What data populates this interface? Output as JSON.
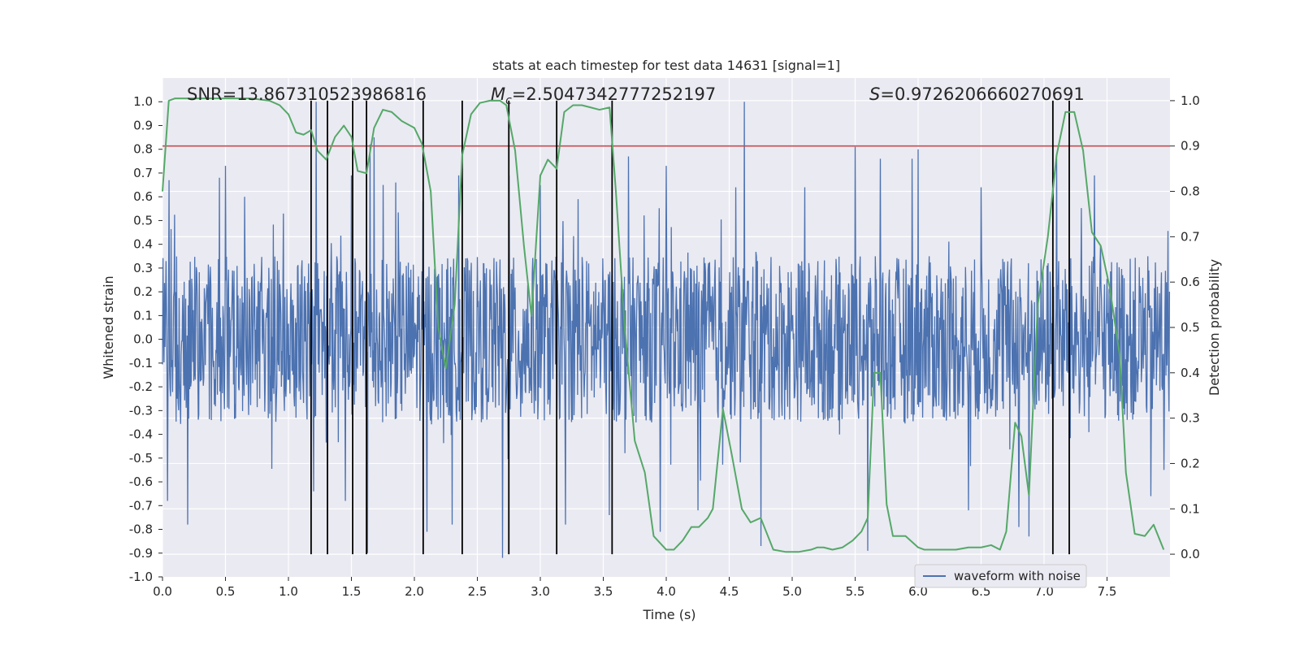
{
  "chart_data": {
    "type": "line",
    "title": "stats at each timestep for test data 14631 [signal=1]",
    "xlabel": "Time (s)",
    "ylabel": "Whitened strain",
    "ylabel_right": "Detection probability",
    "xlim": [
      0.0,
      8.0
    ],
    "ylim": [
      -1.0,
      1.1
    ],
    "ylim_right": [
      -0.05,
      1.05
    ],
    "x_ticks": [
      "0.0",
      "0.5",
      "1.0",
      "1.5",
      "2.0",
      "2.5",
      "3.0",
      "3.5",
      "4.0",
      "4.5",
      "5.0",
      "5.5",
      "6.0",
      "6.5",
      "7.0",
      "7.5"
    ],
    "y_ticks": [
      "-1.0",
      "-0.9",
      "-0.8",
      "-0.7",
      "-0.6",
      "-0.5",
      "-0.4",
      "-0.3",
      "-0.2",
      "-0.1",
      "0.0",
      "0.1",
      "0.2",
      "0.3",
      "0.4",
      "0.5",
      "0.6",
      "0.7",
      "0.8",
      "0.9",
      "1.0"
    ],
    "y_ticks_right": [
      "0.0",
      "0.1",
      "0.2",
      "0.3",
      "0.4",
      "0.5",
      "0.6",
      "0.7",
      "0.8",
      "0.9",
      "1.0"
    ],
    "grid": true,
    "legend_position": "lower-right",
    "annotations": {
      "snr": "SNR=13.867310523986816",
      "mc_symbol": "M",
      "mc_subscript": "c",
      "mc_value": "=2.5047342777252197",
      "s_symbol": "S",
      "s_value": "=0.9726206660270691"
    },
    "colors": {
      "waveform": "#4c72b0",
      "probability": "#55a868",
      "threshold": "#c44e52",
      "event_lines": "#000000",
      "plot_background": "#eaeaf2",
      "grid": "#ffffff"
    },
    "series": [
      {
        "name": "waveform with noise",
        "axis": "left",
        "style": "dense noise trace",
        "sample_rate_hz": 250,
        "typical_range": [
          -0.35,
          0.35
        ],
        "peaks_positive": [
          [
            0.05,
            0.67
          ],
          [
            0.2,
            0.7
          ],
          [
            0.45,
            0.68
          ],
          [
            0.5,
            0.73
          ],
          [
            0.65,
            0.6
          ],
          [
            1.2,
            0.63
          ],
          [
            1.22,
            1.0
          ],
          [
            1.5,
            0.69
          ],
          [
            1.65,
            0.82
          ],
          [
            1.68,
            0.85
          ],
          [
            1.75,
            0.65
          ],
          [
            1.85,
            0.66
          ],
          [
            2.35,
            0.69
          ],
          [
            2.7,
            0.64
          ],
          [
            2.75,
            0.69
          ],
          [
            3.0,
            0.65
          ],
          [
            3.3,
            0.59
          ],
          [
            3.55,
            0.79
          ],
          [
            3.7,
            0.77
          ],
          [
            4.0,
            0.73
          ],
          [
            4.55,
            0.64
          ],
          [
            4.62,
            1.0
          ],
          [
            5.1,
            0.64
          ],
          [
            5.5,
            0.81
          ],
          [
            5.7,
            0.76
          ],
          [
            5.95,
            0.76
          ],
          [
            6.0,
            0.8
          ],
          [
            6.5,
            0.64
          ],
          [
            7.1,
            0.76
          ],
          [
            7.4,
            0.69
          ],
          [
            7.95,
            0.73
          ]
        ],
        "peaks_negative": [
          [
            0.04,
            -0.68
          ],
          [
            0.2,
            -0.78
          ],
          [
            1.2,
            -0.64
          ],
          [
            1.45,
            -0.68
          ],
          [
            1.63,
            -0.9
          ],
          [
            2.1,
            -0.81
          ],
          [
            2.3,
            -0.78
          ],
          [
            2.7,
            -0.92
          ],
          [
            3.2,
            -0.78
          ],
          [
            3.55,
            -0.74
          ],
          [
            3.95,
            -0.81
          ],
          [
            4.25,
            -0.72
          ],
          [
            4.75,
            -0.87
          ],
          [
            5.6,
            -0.89
          ],
          [
            6.4,
            -0.72
          ],
          [
            6.8,
            -0.79
          ],
          [
            6.88,
            -0.83
          ],
          [
            7.85,
            -0.66
          ],
          [
            7.95,
            -0.55
          ]
        ]
      },
      {
        "name": "",
        "axis": "right",
        "x": [
          0.0,
          0.05,
          0.1,
          0.2,
          0.3,
          0.5,
          0.7,
          0.85,
          0.93,
          1.0,
          1.06,
          1.12,
          1.18,
          1.23,
          1.3,
          1.37,
          1.44,
          1.5,
          1.55,
          1.62,
          1.68,
          1.75,
          1.82,
          1.9,
          2.0,
          2.06,
          2.13,
          2.19,
          2.25,
          2.32,
          2.38,
          2.45,
          2.52,
          2.6,
          2.68,
          2.73,
          2.8,
          2.87,
          2.93,
          3.0,
          3.06,
          3.13,
          3.19,
          3.26,
          3.33,
          3.4,
          3.47,
          3.55,
          3.6,
          3.67,
          3.75,
          3.83,
          3.9,
          4.0,
          4.06,
          4.13,
          4.2,
          4.26,
          4.33,
          4.37,
          4.45,
          4.52,
          4.6,
          4.67,
          4.75,
          4.85,
          4.95,
          5.05,
          5.15,
          5.2,
          5.25,
          5.32,
          5.4,
          5.48,
          5.55,
          5.6,
          5.65,
          5.7,
          5.75,
          5.8,
          5.9,
          6.0,
          6.05,
          6.15,
          6.3,
          6.4,
          6.5,
          6.58,
          6.65,
          6.7,
          6.77,
          6.82,
          6.88,
          6.95,
          7.03,
          7.1,
          7.17,
          7.24,
          7.31,
          7.38,
          7.45,
          7.52,
          7.6,
          7.65,
          7.72,
          7.8,
          7.87,
          7.95
        ],
        "values": [
          0.8,
          1.0,
          1.005,
          1.005,
          1.005,
          1.005,
          1.005,
          1.0,
          0.99,
          0.97,
          0.93,
          0.925,
          0.935,
          0.89,
          0.87,
          0.92,
          0.945,
          0.92,
          0.845,
          0.84,
          0.94,
          0.98,
          0.975,
          0.955,
          0.94,
          0.905,
          0.8,
          0.5,
          0.41,
          0.55,
          0.88,
          0.97,
          0.995,
          1.0,
          1.0,
          0.99,
          0.89,
          0.68,
          0.525,
          0.835,
          0.87,
          0.85,
          0.975,
          0.99,
          0.99,
          0.985,
          0.98,
          0.985,
          0.8,
          0.5,
          0.25,
          0.18,
          0.04,
          0.01,
          0.01,
          0.03,
          0.06,
          0.06,
          0.08,
          0.1,
          0.32,
          0.22,
          0.1,
          0.07,
          0.08,
          0.01,
          0.005,
          0.005,
          0.01,
          0.015,
          0.015,
          0.01,
          0.015,
          0.03,
          0.05,
          0.08,
          0.4,
          0.4,
          0.11,
          0.04,
          0.04,
          0.015,
          0.01,
          0.01,
          0.01,
          0.015,
          0.015,
          0.02,
          0.01,
          0.05,
          0.29,
          0.26,
          0.13,
          0.55,
          0.7,
          0.88,
          0.975,
          0.975,
          0.89,
          0.71,
          0.68,
          0.59,
          0.44,
          0.18,
          0.045,
          0.04,
          0.065,
          0.01
        ]
      },
      {
        "name": "",
        "axis": "right",
        "style": "horizontal threshold line",
        "value": 0.9
      },
      {
        "name": "",
        "axis": "right",
        "style": "vertical event markers",
        "x": [
          1.18,
          1.31,
          1.51,
          1.62,
          2.07,
          2.38,
          2.75,
          3.13,
          3.57,
          7.07,
          7.2
        ],
        "y_range": [
          0.0,
          1.0
        ]
      }
    ]
  }
}
